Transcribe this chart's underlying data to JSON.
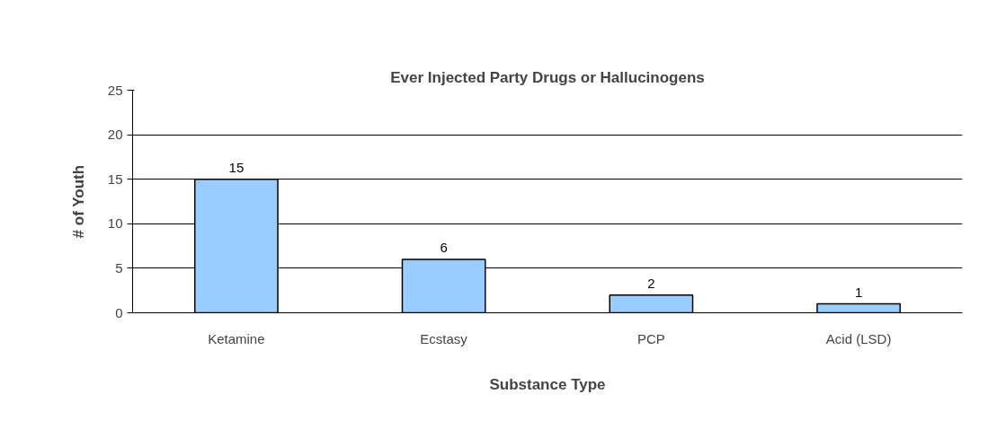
{
  "chart_data": {
    "type": "bar",
    "title": "Ever Injected Party Drugs or Hallucinogens",
    "xlabel": "Substance Type",
    "ylabel": "# of Youth",
    "categories": [
      "Ketamine",
      "Ecstasy",
      "PCP",
      "Acid (LSD)"
    ],
    "values": [
      15,
      6,
      2,
      1
    ],
    "color": "#99ccff",
    "ylim": [
      0,
      25
    ],
    "yticks": [
      0,
      5,
      10,
      15,
      20,
      25
    ],
    "grid": "y",
    "data_labels": true
  }
}
